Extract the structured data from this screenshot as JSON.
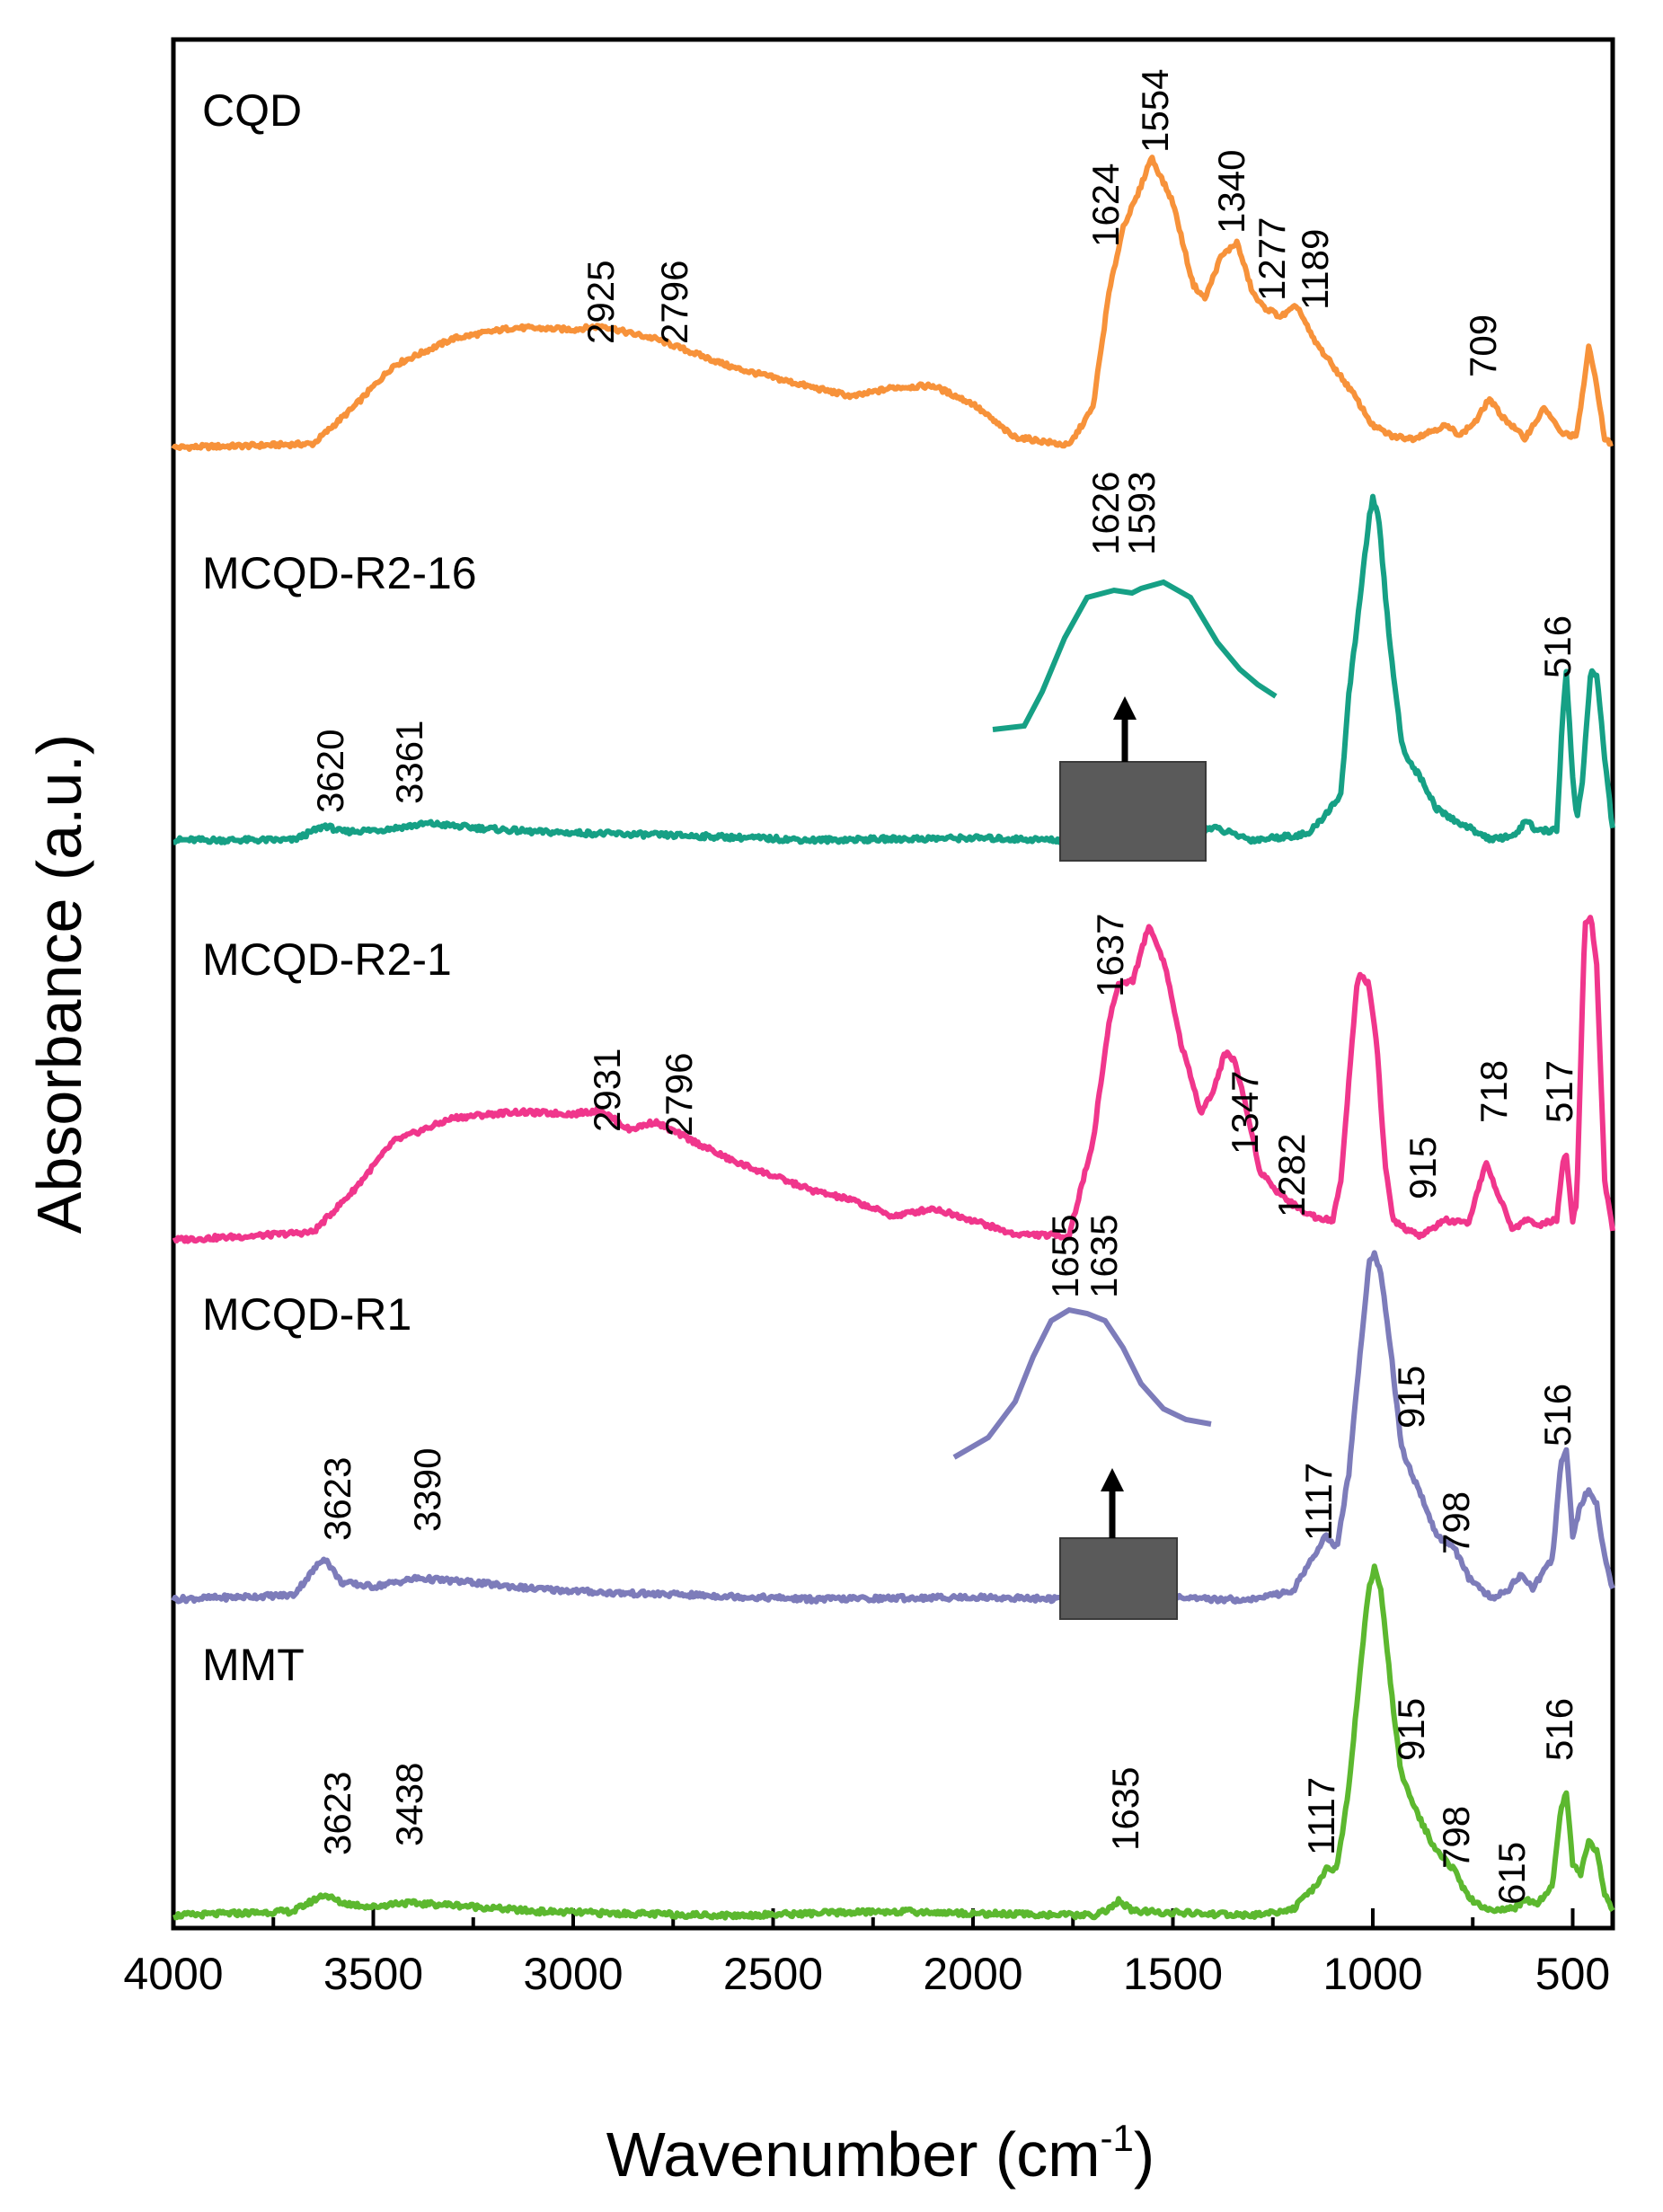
{
  "chart_data": {
    "type": "line",
    "title": "",
    "xlabel": "Wavenumber (cm",
    "xlabel_sup": "-1",
    "xlabel_close": ")",
    "ylabel": "Absorbance (a.u.)",
    "xlim": [
      4000,
      400
    ],
    "x_reversed": true,
    "y_ticks_shown": false,
    "x_ticks": [
      4000,
      3500,
      3000,
      2500,
      2000,
      1500,
      1000,
      500
    ],
    "x_tick_labels": [
      "4000",
      "3500",
      "3000",
      "2500",
      "2000",
      "1500",
      "1000",
      "500"
    ],
    "series": [
      {
        "name": "CQD",
        "color": "#f7923a",
        "points": [
          [
            4000,
            0.0
          ],
          [
            3800,
            0.01
          ],
          [
            3650,
            0.02
          ],
          [
            3550,
            0.22
          ],
          [
            3450,
            0.45
          ],
          [
            3300,
            0.6
          ],
          [
            3150,
            0.66
          ],
          [
            3000,
            0.65
          ],
          [
            2925,
            0.67
          ],
          [
            2860,
            0.63
          ],
          [
            2796,
            0.6
          ],
          [
            2600,
            0.44
          ],
          [
            2400,
            0.33
          ],
          [
            2300,
            0.28
          ],
          [
            2200,
            0.33
          ],
          [
            2100,
            0.34
          ],
          [
            2000,
            0.24
          ],
          [
            1900,
            0.06
          ],
          [
            1760,
            0.01
          ],
          [
            1700,
            0.22
          ],
          [
            1660,
            0.85
          ],
          [
            1624,
            1.22
          ],
          [
            1590,
            1.38
          ],
          [
            1554,
            1.6
          ],
          [
            1500,
            1.35
          ],
          [
            1450,
            0.9
          ],
          [
            1420,
            0.82
          ],
          [
            1380,
            1.05
          ],
          [
            1340,
            1.13
          ],
          [
            1300,
            0.85
          ],
          [
            1277,
            0.78
          ],
          [
            1230,
            0.72
          ],
          [
            1189,
            0.78
          ],
          [
            1150,
            0.6
          ],
          [
            1100,
            0.45
          ],
          [
            1050,
            0.3
          ],
          [
            1000,
            0.12
          ],
          [
            950,
            0.06
          ],
          [
            900,
            0.05
          ],
          [
            820,
            0.12
          ],
          [
            780,
            0.07
          ],
          [
            740,
            0.15
          ],
          [
            709,
            0.27
          ],
          [
            680,
            0.18
          ],
          [
            620,
            0.05
          ],
          [
            570,
            0.22
          ],
          [
            530,
            0.08
          ],
          [
            490,
            0.06
          ],
          [
            460,
            0.55
          ],
          [
            440,
            0.35
          ],
          [
            420,
            0.04
          ],
          [
            400,
            0.02
          ]
        ]
      },
      {
        "name": "MCQD-R2-16",
        "color": "#16a085",
        "points": [
          [
            4000,
            0.0
          ],
          [
            3700,
            0.0
          ],
          [
            3620,
            0.07
          ],
          [
            3580,
            0.04
          ],
          [
            3480,
            0.05
          ],
          [
            3361,
            0.08
          ],
          [
            3250,
            0.06
          ],
          [
            3100,
            0.04
          ],
          [
            2900,
            0.03
          ],
          [
            2700,
            0.02
          ],
          [
            2400,
            0.0
          ],
          [
            2000,
            0.01
          ],
          [
            1780,
            0.0
          ],
          [
            1700,
            0.05
          ],
          [
            1626,
            0.12
          ],
          [
            1593,
            0.13
          ],
          [
            1540,
            0.08
          ],
          [
            1450,
            0.04
          ],
          [
            1400,
            0.06
          ],
          [
            1300,
            0.0
          ],
          [
            1160,
            0.03
          ],
          [
            1120,
            0.12
          ],
          [
            1080,
            0.22
          ],
          [
            1060,
            0.7
          ],
          [
            1030,
            1.2
          ],
          [
            1010,
            1.55
          ],
          [
            1000,
            1.65
          ],
          [
            985,
            1.55
          ],
          [
            960,
            1.0
          ],
          [
            930,
            0.5
          ],
          [
            915,
            0.4
          ],
          [
            880,
            0.3
          ],
          [
            840,
            0.15
          ],
          [
            800,
            0.1
          ],
          [
            700,
            0.0
          ],
          [
            640,
            0.03
          ],
          [
            615,
            0.1
          ],
          [
            590,
            0.04
          ],
          [
            540,
            0.05
          ],
          [
            525,
            0.6
          ],
          [
            516,
            0.82
          ],
          [
            500,
            0.3
          ],
          [
            490,
            0.1
          ],
          [
            475,
            0.3
          ],
          [
            455,
            0.82
          ],
          [
            440,
            0.8
          ],
          [
            420,
            0.4
          ],
          [
            400,
            0.05
          ]
        ]
      },
      {
        "name": "MCQD-R2-1",
        "color": "#f0368c",
        "points": [
          [
            4000,
            0.0
          ],
          [
            3800,
            0.02
          ],
          [
            3650,
            0.04
          ],
          [
            3550,
            0.25
          ],
          [
            3450,
            0.5
          ],
          [
            3300,
            0.62
          ],
          [
            3150,
            0.65
          ],
          [
            3000,
            0.64
          ],
          [
            2931,
            0.66
          ],
          [
            2860,
            0.56
          ],
          [
            2796,
            0.6
          ],
          [
            2600,
            0.4
          ],
          [
            2400,
            0.25
          ],
          [
            2300,
            0.2
          ],
          [
            2200,
            0.12
          ],
          [
            2100,
            0.16
          ],
          [
            2000,
            0.1
          ],
          [
            1900,
            0.03
          ],
          [
            1760,
            0.02
          ],
          [
            1700,
            0.5
          ],
          [
            1660,
            1.1
          ],
          [
            1637,
            1.3
          ],
          [
            1600,
            1.32
          ],
          [
            1560,
            1.6
          ],
          [
            1520,
            1.4
          ],
          [
            1480,
            1.0
          ],
          [
            1430,
            0.65
          ],
          [
            1400,
            0.75
          ],
          [
            1370,
            0.95
          ],
          [
            1347,
            0.92
          ],
          [
            1320,
            0.7
          ],
          [
            1282,
            0.35
          ],
          [
            1240,
            0.25
          ],
          [
            1200,
            0.18
          ],
          [
            1150,
            0.12
          ],
          [
            1100,
            0.1
          ],
          [
            1080,
            0.3
          ],
          [
            1060,
            0.8
          ],
          [
            1040,
            1.3
          ],
          [
            1030,
            1.35
          ],
          [
            1010,
            1.3
          ],
          [
            990,
            1.0
          ],
          [
            970,
            0.4
          ],
          [
            950,
            0.1
          ],
          [
            915,
            0.05
          ],
          [
            880,
            0.02
          ],
          [
            820,
            0.1
          ],
          [
            760,
            0.08
          ],
          [
            730,
            0.3
          ],
          [
            718,
            0.4
          ],
          [
            700,
            0.3
          ],
          [
            650,
            0.05
          ],
          [
            620,
            0.1
          ],
          [
            580,
            0.08
          ],
          [
            540,
            0.1
          ],
          [
            525,
            0.4
          ],
          [
            517,
            0.45
          ],
          [
            500,
            0.1
          ],
          [
            490,
            0.2
          ],
          [
            470,
            1.6
          ],
          [
            455,
            1.65
          ],
          [
            440,
            1.4
          ],
          [
            420,
            0.3
          ],
          [
            400,
            0.05
          ]
        ]
      },
      {
        "name": "MCQD-R1",
        "color": "#7d7cba",
        "points": [
          [
            4000,
            0.0
          ],
          [
            3700,
            0.02
          ],
          [
            3623,
            0.2
          ],
          [
            3580,
            0.08
          ],
          [
            3500,
            0.06
          ],
          [
            3390,
            0.1
          ],
          [
            3250,
            0.08
          ],
          [
            3100,
            0.05
          ],
          [
            2900,
            0.03
          ],
          [
            2700,
            0.02
          ],
          [
            2400,
            0.0
          ],
          [
            2000,
            0.01
          ],
          [
            1760,
            0.0
          ],
          [
            1700,
            0.06
          ],
          [
            1655,
            0.15
          ],
          [
            1635,
            0.14
          ],
          [
            1580,
            0.05
          ],
          [
            1450,
            0.0
          ],
          [
            1300,
            0.0
          ],
          [
            1200,
            0.04
          ],
          [
            1150,
            0.2
          ],
          [
            1117,
            0.3
          ],
          [
            1090,
            0.25
          ],
          [
            1060,
            0.6
          ],
          [
            1030,
            1.2
          ],
          [
            1010,
            1.6
          ],
          [
            995,
            1.65
          ],
          [
            980,
            1.55
          ],
          [
            950,
            1.1
          ],
          [
            930,
            0.75
          ],
          [
            915,
            0.65
          ],
          [
            880,
            0.5
          ],
          [
            840,
            0.3
          ],
          [
            798,
            0.25
          ],
          [
            760,
            0.1
          ],
          [
            700,
            0.0
          ],
          [
            660,
            0.05
          ],
          [
            630,
            0.12
          ],
          [
            600,
            0.05
          ],
          [
            550,
            0.2
          ],
          [
            530,
            0.65
          ],
          [
            516,
            0.72
          ],
          [
            500,
            0.3
          ],
          [
            480,
            0.45
          ],
          [
            460,
            0.52
          ],
          [
            440,
            0.45
          ],
          [
            420,
            0.2
          ],
          [
            400,
            0.05
          ]
        ]
      },
      {
        "name": "MMT",
        "color": "#5cb82f",
        "points": [
          [
            4000,
            0.0
          ],
          [
            3700,
            0.02
          ],
          [
            3623,
            0.1
          ],
          [
            3580,
            0.06
          ],
          [
            3500,
            0.04
          ],
          [
            3438,
            0.06
          ],
          [
            3300,
            0.05
          ],
          [
            3100,
            0.02
          ],
          [
            2900,
            0.01
          ],
          [
            2600,
            0.0
          ],
          [
            2200,
            0.02
          ],
          [
            2000,
            0.01
          ],
          [
            1700,
            0.0
          ],
          [
            1660,
            0.03
          ],
          [
            1635,
            0.07
          ],
          [
            1600,
            0.02
          ],
          [
            1450,
            0.01
          ],
          [
            1300,
            0.0
          ],
          [
            1200,
            0.03
          ],
          [
            1150,
            0.12
          ],
          [
            1117,
            0.22
          ],
          [
            1090,
            0.22
          ],
          [
            1060,
            0.6
          ],
          [
            1030,
            1.2
          ],
          [
            1010,
            1.55
          ],
          [
            995,
            1.65
          ],
          [
            980,
            1.55
          ],
          [
            950,
            1.0
          ],
          [
            930,
            0.68
          ],
          [
            915,
            0.6
          ],
          [
            880,
            0.45
          ],
          [
            840,
            0.3
          ],
          [
            798,
            0.22
          ],
          [
            760,
            0.08
          ],
          [
            700,
            0.02
          ],
          [
            640,
            0.04
          ],
          [
            615,
            0.08
          ],
          [
            590,
            0.05
          ],
          [
            550,
            0.15
          ],
          [
            530,
            0.5
          ],
          [
            516,
            0.58
          ],
          [
            500,
            0.25
          ],
          [
            480,
            0.2
          ],
          [
            460,
            0.35
          ],
          [
            440,
            0.3
          ],
          [
            420,
            0.1
          ],
          [
            400,
            0.02
          ]
        ]
      }
    ],
    "peak_labels": [
      {
        "series": "CQD",
        "labels": [
          "2925",
          "2796",
          "1624",
          "1554",
          "1340",
          "1277",
          "1189",
          "709"
        ]
      },
      {
        "series": "MCQD-R2-16",
        "labels": [
          "3620",
          "3361",
          "1626",
          "1593",
          "516"
        ]
      },
      {
        "series": "MCQD-R2-1",
        "labels": [
          "2931",
          "2796",
          "1637",
          "1347",
          "1282",
          "915",
          "718",
          "517"
        ]
      },
      {
        "series": "MCQD-R1",
        "labels": [
          "3623",
          "3390",
          "1655",
          "1635",
          "1117",
          "915",
          "798",
          "516"
        ]
      },
      {
        "series": "MMT",
        "labels": [
          "3623",
          "3438",
          "1635",
          "1117",
          "915",
          "798",
          "615",
          "516"
        ]
      }
    ],
    "insets": [
      {
        "series": "MCQD-R2-16",
        "labels": [
          "1626",
          "1593"
        ]
      },
      {
        "series": "MCQD-R1",
        "labels": [
          "1655",
          "1635"
        ]
      }
    ]
  }
}
